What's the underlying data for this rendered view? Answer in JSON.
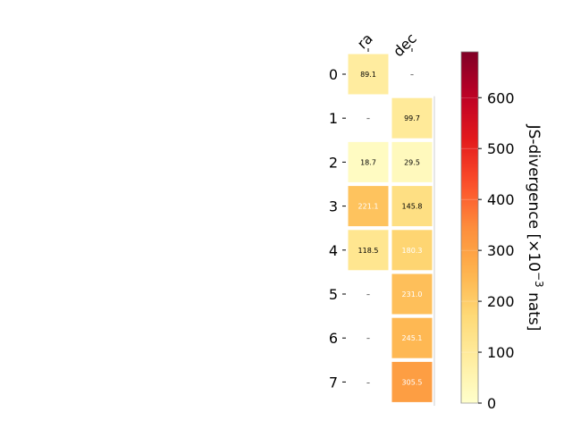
{
  "chart_data": {
    "type": "heatmap",
    "columns": [
      "ra",
      "dec"
    ],
    "rows": [
      "0",
      "1",
      "2",
      "3",
      "4",
      "5",
      "6",
      "7"
    ],
    "values": [
      [
        89.1,
        null
      ],
      [
        null,
        99.7
      ],
      [
        18.7,
        29.5
      ],
      [
        221.1,
        145.8
      ],
      [
        118.5,
        180.3
      ],
      [
        null,
        231.0
      ],
      [
        null,
        245.1
      ],
      [
        null,
        305.5
      ]
    ],
    "missing_label": "–",
    "colorbar": {
      "label": "JS-divergence [×10",
      "label_exp": "−3",
      "label_unit": " nats]",
      "range": [
        0,
        690
      ],
      "ticks": [
        "0",
        "100",
        "200",
        "300",
        "400",
        "500",
        "600"
      ],
      "colormap": "YlOrRd"
    },
    "colors": {
      "light_text": "#ffffff",
      "dark_text": "#000000",
      "cell_gap": "#ffffff"
    }
  }
}
